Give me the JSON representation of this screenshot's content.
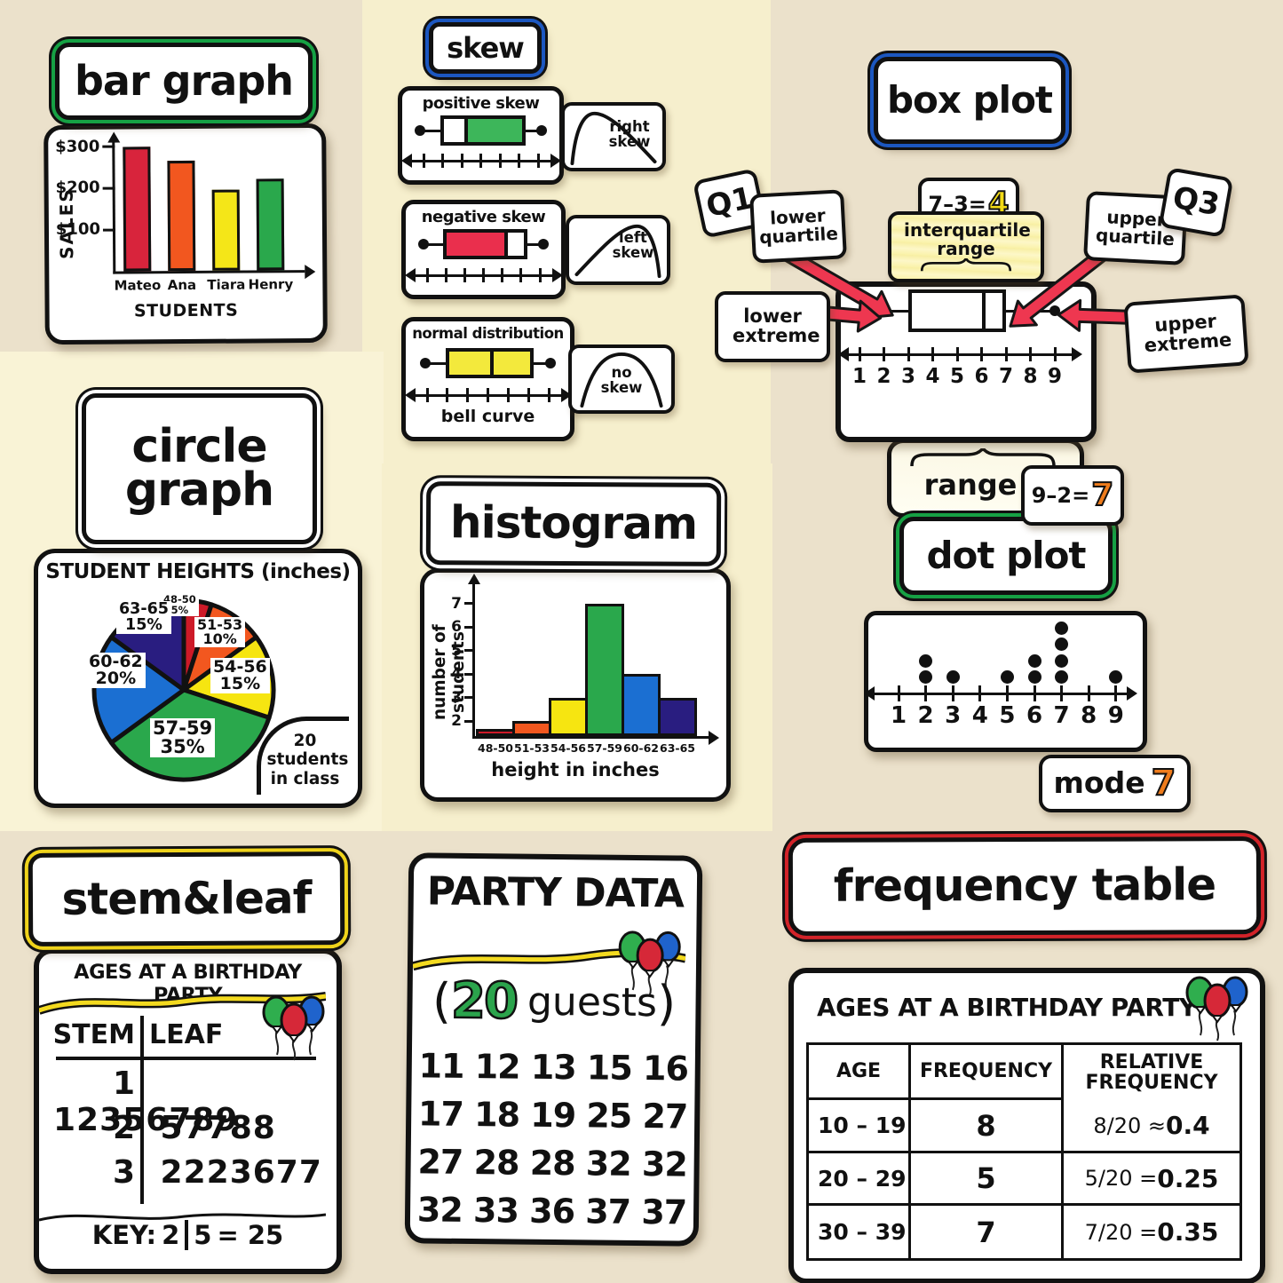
{
  "bar_graph": {
    "title": "bar graph",
    "ring": "#16a144"
  },
  "skew": {
    "title": "skew",
    "ring": "#1c57c0",
    "cards": [
      {
        "label": "positive skew",
        "side": "right",
        "fill": "#3db65a",
        "median": 0.28
      },
      {
        "label": "negative skew",
        "side": "left",
        "fill": "#ea2f4d",
        "median": 0.72
      },
      {
        "label": "normal distribution",
        "side": "both",
        "fill": "#f3e93c",
        "median": 0.5,
        "footer": "bell curve"
      }
    ],
    "tags": [
      [
        "right",
        "skew"
      ],
      [
        "left",
        "skew"
      ],
      [
        "no",
        "skew"
      ]
    ]
  },
  "box_plot": {
    "title": "box plot",
    "ring": "#1c57c0",
    "q1": "Q1",
    "q3": "Q3",
    "lower_quartile": "lower quartile",
    "upper_quartile": "upper quartile",
    "iqr_eq": "7–3=",
    "iqr_val": "4",
    "iqr_val_color": "#f2da16",
    "iqr_label": "interquartile range",
    "lower_extreme": "lower extreme",
    "upper_extreme": "upper extreme",
    "range_label": "range",
    "range_eq": "9–2=",
    "range_val": "7",
    "range_val_color": "#ef7c1c"
  },
  "circle_graph": {
    "title": "circle graph",
    "heading": "STUDENT HEIGHTS (inches)",
    "note": "20 students in class"
  },
  "histogram": {
    "title": "histogram"
  },
  "dot_plot": {
    "title": "dot plot",
    "ring": "#16a144",
    "mode_label": "mode",
    "mode_value": "7",
    "mode_color": "#ef7c1c"
  },
  "stem_leaf": {
    "title": "stem&leaf",
    "ring": "#efd31b",
    "heading": "AGES AT A BIRTHDAY PARTY",
    "key_label": "KEY:",
    "key_stem": "2",
    "key_leaf": "5",
    "key_equals": "= 25"
  },
  "party": {
    "title": "PARTY DATA",
    "open": "(",
    "count": "20",
    "count_color": "#2ba44c",
    "word": "guests",
    "close": ")"
  },
  "freq_table": {
    "title": "frequency table",
    "ring": "#d22329",
    "heading": "AGES AT A BIRTHDAY PARTY"
  },
  "chart_data": [
    {
      "id": "bar-sales",
      "type": "bar",
      "title": "bar graph",
      "ylabel": "SALES",
      "xlabel": "STUDENTS",
      "categories": [
        "Mateo",
        "Ana",
        "Tiara",
        "Henry"
      ],
      "values": [
        300,
        265,
        195,
        220
      ],
      "colors": [
        "#d8243c",
        "#f2571f",
        "#f4e618",
        "#2aa84c"
      ],
      "yticks": [
        300,
        200,
        100
      ],
      "ytick_labels": [
        "$300",
        "$200",
        "$100"
      ],
      "ylim": [
        0,
        330
      ]
    },
    {
      "id": "circle-heights",
      "type": "pie",
      "title": "circle graph",
      "heading": "STUDENT HEIGHTS (inches)",
      "labels": [
        "48-50",
        "51-53",
        "54-56",
        "57-59",
        "60-62",
        "63-65"
      ],
      "pcts": [
        "5%",
        "10%",
        "15%",
        "35%",
        "20%",
        "15%"
      ],
      "values": [
        5,
        10,
        15,
        35,
        20,
        15
      ],
      "colors": [
        "#cd1a28",
        "#f2571f",
        "#f6e511",
        "#2aa84c",
        "#1b6fd2",
        "#291d80"
      ],
      "note": "20 students in class",
      "total_students": 20
    },
    {
      "id": "histogram-heights",
      "type": "bar",
      "title": "histogram",
      "ylabel": "number of students",
      "xlabel": "height in inches",
      "categories": [
        "48-50",
        "51-53",
        "54-56",
        "57-59",
        "60-62",
        "63-65"
      ],
      "values": [
        1,
        2,
        3,
        7,
        4,
        3
      ],
      "colors": [
        "#cd1a28",
        "#f2571f",
        "#f6e511",
        "#2aa84c",
        "#1b6fd2",
        "#291d80"
      ],
      "yticks": [
        2,
        3,
        4,
        5,
        6,
        7
      ]
    },
    {
      "id": "dot-plot",
      "type": "dot",
      "title": "dot plot",
      "x": [
        1,
        2,
        3,
        4,
        5,
        6,
        7,
        8,
        9
      ],
      "counts": [
        0,
        2,
        1,
        0,
        1,
        2,
        4,
        0,
        1
      ],
      "mode": 7
    },
    {
      "id": "box-plot",
      "type": "box",
      "title": "box plot",
      "lower_extreme": 2,
      "q1": 3,
      "median": 6.1,
      "q3": 7,
      "upper_extreme": 9,
      "iqr": 4,
      "range": 7,
      "axis": [
        1,
        2,
        3,
        4,
        5,
        6,
        7,
        8,
        9
      ]
    },
    {
      "id": "stem-leaf",
      "type": "table",
      "title": "stem&leaf",
      "heading": "AGES AT A BIRTHDAY PARTY",
      "columns": [
        "STEM",
        "LEAF"
      ],
      "rows": [
        [
          "1",
          "12356789"
        ],
        [
          "2",
          "57788"
        ],
        [
          "3",
          "2223677"
        ]
      ],
      "key": "KEY: 2|5 = 25"
    },
    {
      "id": "party-data",
      "type": "table",
      "title": "PARTY DATA",
      "guests": 20,
      "values": [
        11,
        12,
        13,
        15,
        16,
        17,
        18,
        19,
        25,
        27,
        27,
        28,
        28,
        32,
        32,
        32,
        33,
        36,
        37,
        37
      ],
      "rows": [
        "11 12 13 15 16",
        "17 18 19 25 27",
        "27 28 28 32 32",
        "32 33 36 37 37"
      ]
    },
    {
      "id": "frequency-table",
      "type": "table",
      "title": "frequency table",
      "heading": "AGES AT A BIRTHDAY PARTY",
      "columns": [
        "AGE",
        "FREQUENCY",
        "RELATIVE FREQUENCY"
      ],
      "rows": [
        {
          "age": "10 – 19",
          "frequency": "8",
          "relative": "8/20 ≈ ",
          "relative_value": "0.4"
        },
        {
          "age": "20 – 29",
          "frequency": "5",
          "relative": "5/20 = ",
          "relative_value": "0.25"
        },
        {
          "age": "30 – 39",
          "frequency": "7",
          "relative": "7/20 = ",
          "relative_value": "0.35"
        }
      ]
    }
  ]
}
